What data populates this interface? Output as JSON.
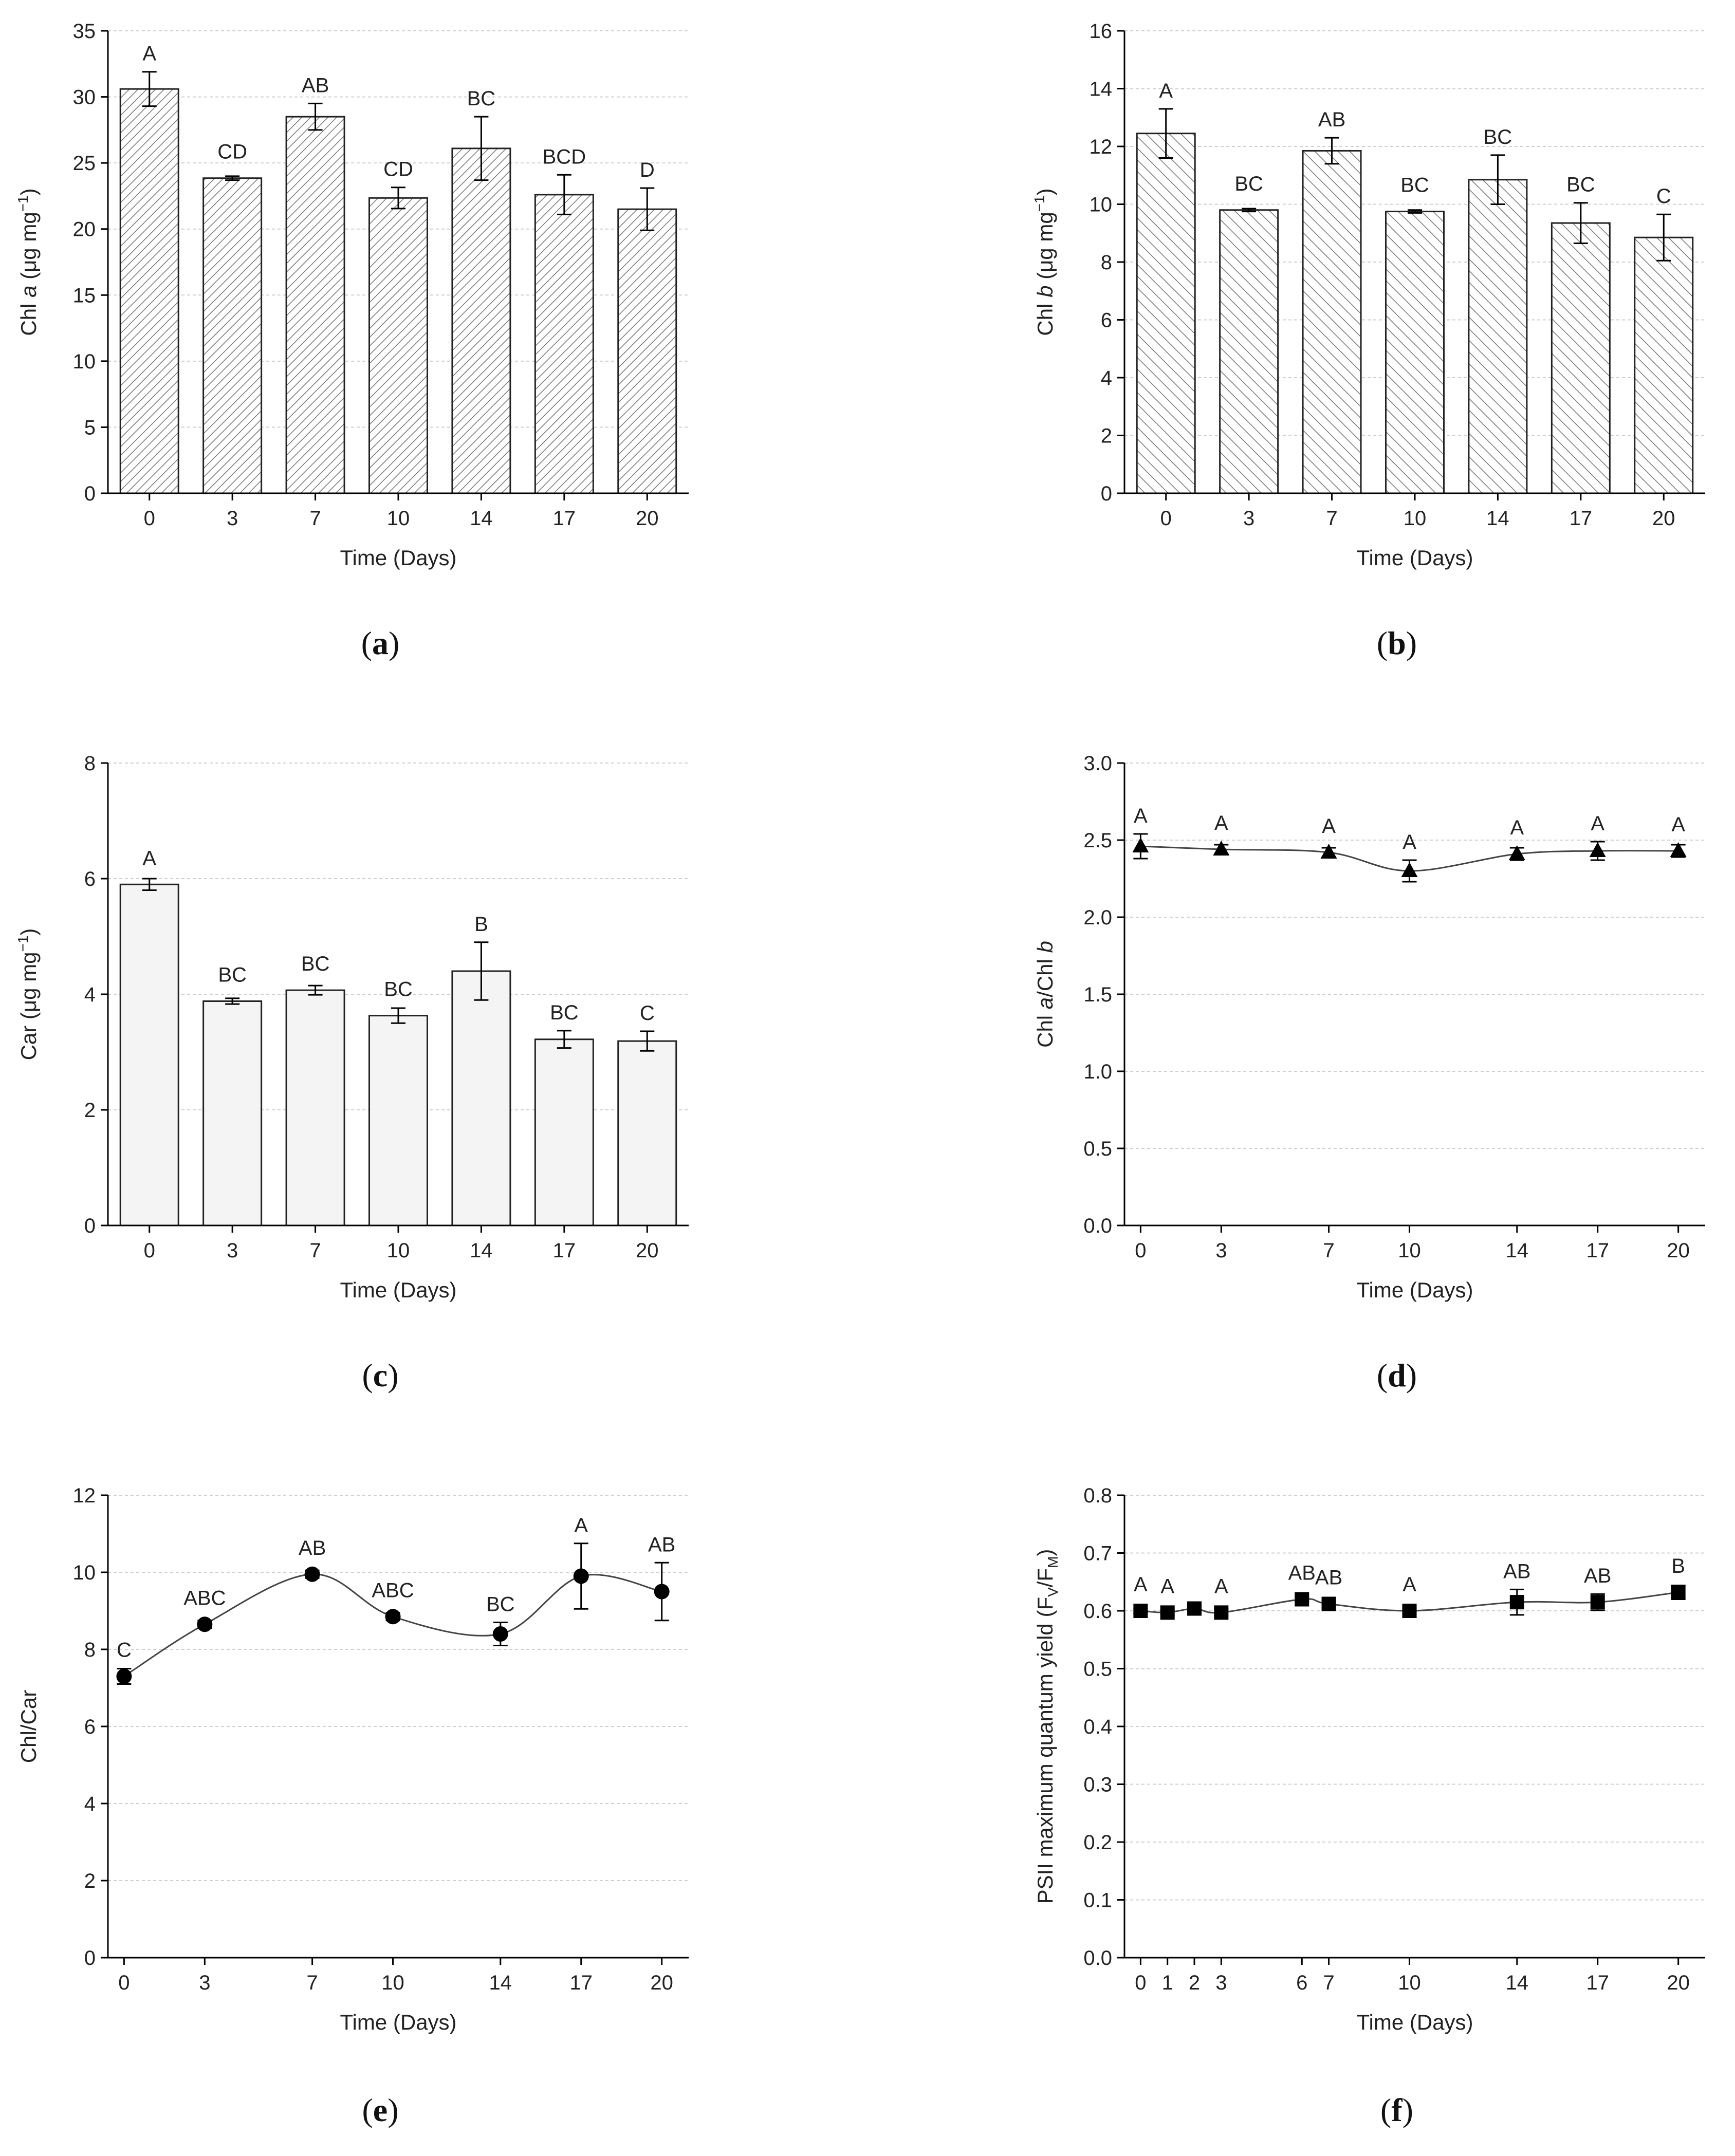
{
  "chart_data": [
    {
      "id": "a",
      "type": "bar",
      "caption": "a",
      "pattern": "hatch-dense",
      "categories": [
        "0",
        "3",
        "7",
        "10",
        "14",
        "17",
        "20"
      ],
      "values": [
        30.6,
        23.85,
        28.5,
        22.35,
        26.1,
        22.6,
        21.5
      ],
      "errors": [
        1.3,
        0.15,
        1.0,
        0.8,
        2.4,
        1.5,
        1.6
      ],
      "labels": [
        "A",
        "CD",
        "AB",
        "CD",
        "BC",
        "BCD",
        "D"
      ],
      "ylabel_pre": "Chl ",
      "ylabel_italic": "a",
      "ylabel_post": " (μg mg",
      "ylabel_sup": "−1",
      "ylabel_close": ")",
      "xlabel": "Time (Days)",
      "ylim": [
        0,
        35
      ],
      "yticks": [
        "0",
        "5",
        "10",
        "15",
        "20",
        "25",
        "30",
        "35"
      ],
      "grid": true
    },
    {
      "id": "b",
      "type": "bar",
      "caption": "b",
      "pattern": "hatch-wide",
      "categories": [
        "0",
        "3",
        "7",
        "10",
        "14",
        "17",
        "20"
      ],
      "values": [
        12.45,
        9.8,
        11.85,
        9.75,
        10.85,
        9.35,
        8.85
      ],
      "errors": [
        0.85,
        0.05,
        0.45,
        0.05,
        0.85,
        0.7,
        0.8
      ],
      "labels": [
        "A",
        "BC",
        "AB",
        "BC",
        "BC",
        "BC",
        "C"
      ],
      "ylabel_pre": "Chl ",
      "ylabel_italic": "b",
      "ylabel_post": " (μg mg",
      "ylabel_sup": "−1",
      "ylabel_close": ")",
      "xlabel": "Time (Days)",
      "ylim": [
        0,
        16
      ],
      "yticks": [
        "0",
        "2",
        "4",
        "6",
        "8",
        "10",
        "12",
        "14",
        "16"
      ],
      "grid": true
    },
    {
      "id": "c",
      "type": "bar",
      "caption": "c",
      "pattern": "solid-light",
      "categories": [
        "0",
        "3",
        "7",
        "10",
        "14",
        "17",
        "20"
      ],
      "values": [
        5.9,
        3.88,
        4.07,
        3.63,
        4.4,
        3.22,
        3.19
      ],
      "errors": [
        0.1,
        0.05,
        0.08,
        0.13,
        0.5,
        0.15,
        0.17
      ],
      "labels": [
        "A",
        "BC",
        "BC",
        "BC",
        "B",
        "BC",
        "C"
      ],
      "ylabel_pre": "Car (μg mg",
      "ylabel_italic": "",
      "ylabel_post": "",
      "ylabel_sup": "−1",
      "ylabel_close": ")",
      "xlabel": "Time (Days)",
      "ylim": [
        0,
        8
      ],
      "yticks": [
        "0",
        "2",
        "4",
        "6",
        "8"
      ],
      "grid": true
    },
    {
      "id": "d",
      "type": "line",
      "caption": "d",
      "marker": "triangle",
      "x": [
        0,
        3,
        7,
        10,
        14,
        17,
        20
      ],
      "xticks": [
        0,
        3,
        7,
        10,
        14,
        17,
        20
      ],
      "values": [
        2.46,
        2.44,
        2.42,
        2.3,
        2.41,
        2.43,
        2.43
      ],
      "errors": [
        0.08,
        0.03,
        0.03,
        0.07,
        0.04,
        0.06,
        0.04
      ],
      "labels": [
        "A",
        "A",
        "A",
        "A",
        "A",
        "A",
        "A"
      ],
      "ylabel_pre": "Chl ",
      "ylabel_italic": "a",
      "ylabel_post": "/Chl ",
      "ylabel_italic2": "b",
      "xlabel": "Time (Days)",
      "xlim": [
        -0.6,
        21
      ],
      "ylim": [
        0,
        3.0
      ],
      "yticks": [
        "0.0",
        "0.5",
        "1.0",
        "1.5",
        "2.0",
        "2.5",
        "3.0"
      ],
      "grid": true
    },
    {
      "id": "e",
      "type": "line",
      "caption": "e",
      "marker": "circle",
      "x": [
        0,
        3,
        7,
        10,
        14,
        17,
        20
      ],
      "xticks": [
        0,
        3,
        7,
        10,
        14,
        17,
        20
      ],
      "values": [
        7.3,
        8.65,
        9.95,
        8.85,
        8.4,
        9.9,
        9.5
      ],
      "errors": [
        0.2,
        0.1,
        0.1,
        0.1,
        0.3,
        0.85,
        0.75
      ],
      "labels": [
        "C",
        "ABC",
        "AB",
        "ABC",
        "BC",
        "A",
        "AB"
      ],
      "ylabel_pre": "Chl/Car",
      "xlabel": "Time (Days)",
      "xlim": [
        -0.6,
        21
      ],
      "ylim": [
        0,
        12
      ],
      "yticks": [
        "0",
        "2",
        "4",
        "6",
        "8",
        "10",
        "12"
      ],
      "grid": true
    },
    {
      "id": "f",
      "type": "line",
      "caption": "f",
      "marker": "square",
      "x": [
        0,
        1,
        2,
        3,
        6,
        7,
        10,
        14,
        17,
        20
      ],
      "xticks": [
        0,
        1,
        2,
        3,
        6,
        7,
        10,
        14,
        17,
        20
      ],
      "values": [
        0.6,
        0.597,
        0.604,
        0.597,
        0.62,
        0.612,
        0.6,
        0.615,
        0.615,
        0.632
      ],
      "errors": [
        0.004,
        0.004,
        0.004,
        0.006,
        0.004,
        0.006,
        0.005,
        0.022,
        0.014,
        0.012
      ],
      "labels": [
        "A",
        "A",
        "",
        "A",
        "AB",
        "AB",
        "A",
        "AB",
        "AB",
        "B"
      ],
      "ylabel_pre": "PSII maximum quantum yield (F",
      "ylabel_sub1": "V",
      "ylabel_mid": "/F",
      "ylabel_sub2": "M",
      "ylabel_close": ")",
      "xlabel": "Time (Days)",
      "xlim": [
        -0.6,
        21
      ],
      "ylim": [
        0,
        0.8
      ],
      "yticks": [
        "0.0",
        "0.1",
        "0.2",
        "0.3",
        "0.4",
        "0.5",
        "0.6",
        "0.7",
        "0.8"
      ],
      "grid": true
    }
  ],
  "captions": [
    {
      "open": "(",
      "letter": "a",
      "close": ")"
    },
    {
      "open": "(",
      "letter": "b",
      "close": ")"
    },
    {
      "open": "(",
      "letter": "c",
      "close": ")"
    },
    {
      "open": "(",
      "letter": "d",
      "close": ")"
    },
    {
      "open": "(",
      "letter": "e",
      "close": ")"
    },
    {
      "open": "(",
      "letter": "f",
      "close": ")"
    }
  ]
}
